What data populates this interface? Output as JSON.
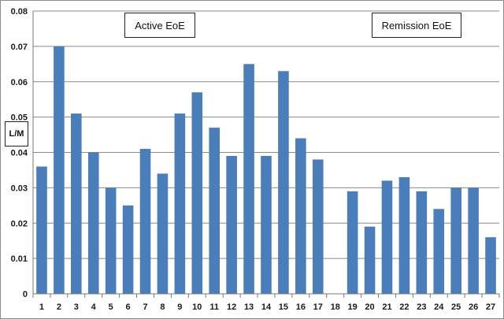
{
  "chart_data": {
    "type": "bar",
    "ylabel": "L/M",
    "xlabel": "",
    "ylim": [
      0,
      0.08
    ],
    "y_ticks": [
      "0",
      "0.01",
      "0.02",
      "0.03",
      "0.04",
      "0.05",
      "0.06",
      "0.07",
      "0.08"
    ],
    "y_tick_values": [
      0,
      0.01,
      0.02,
      0.03,
      0.04,
      0.05,
      0.06,
      0.07,
      0.08
    ],
    "grid": true,
    "categories": [
      "1",
      "2",
      "3",
      "4",
      "5",
      "6",
      "7",
      "8",
      "9",
      "10",
      "11",
      "12",
      "13",
      "14",
      "15",
      "16",
      "17",
      "18",
      "19",
      "20",
      "21",
      "22",
      "23",
      "24",
      "25",
      "26",
      "27"
    ],
    "values": [
      0.036,
      0.07,
      0.051,
      0.04,
      0.03,
      0.025,
      0.041,
      0.034,
      0.051,
      0.057,
      0.047,
      0.039,
      0.065,
      0.039,
      0.063,
      0.044,
      0.038,
      null,
      0.029,
      0.019,
      0.032,
      0.033,
      0.029,
      0.024,
      0.03,
      0.03,
      0.016
    ],
    "bar_color": "#4a7ebb",
    "annotations": [
      "Active EoE",
      "Remission EoE"
    ]
  }
}
